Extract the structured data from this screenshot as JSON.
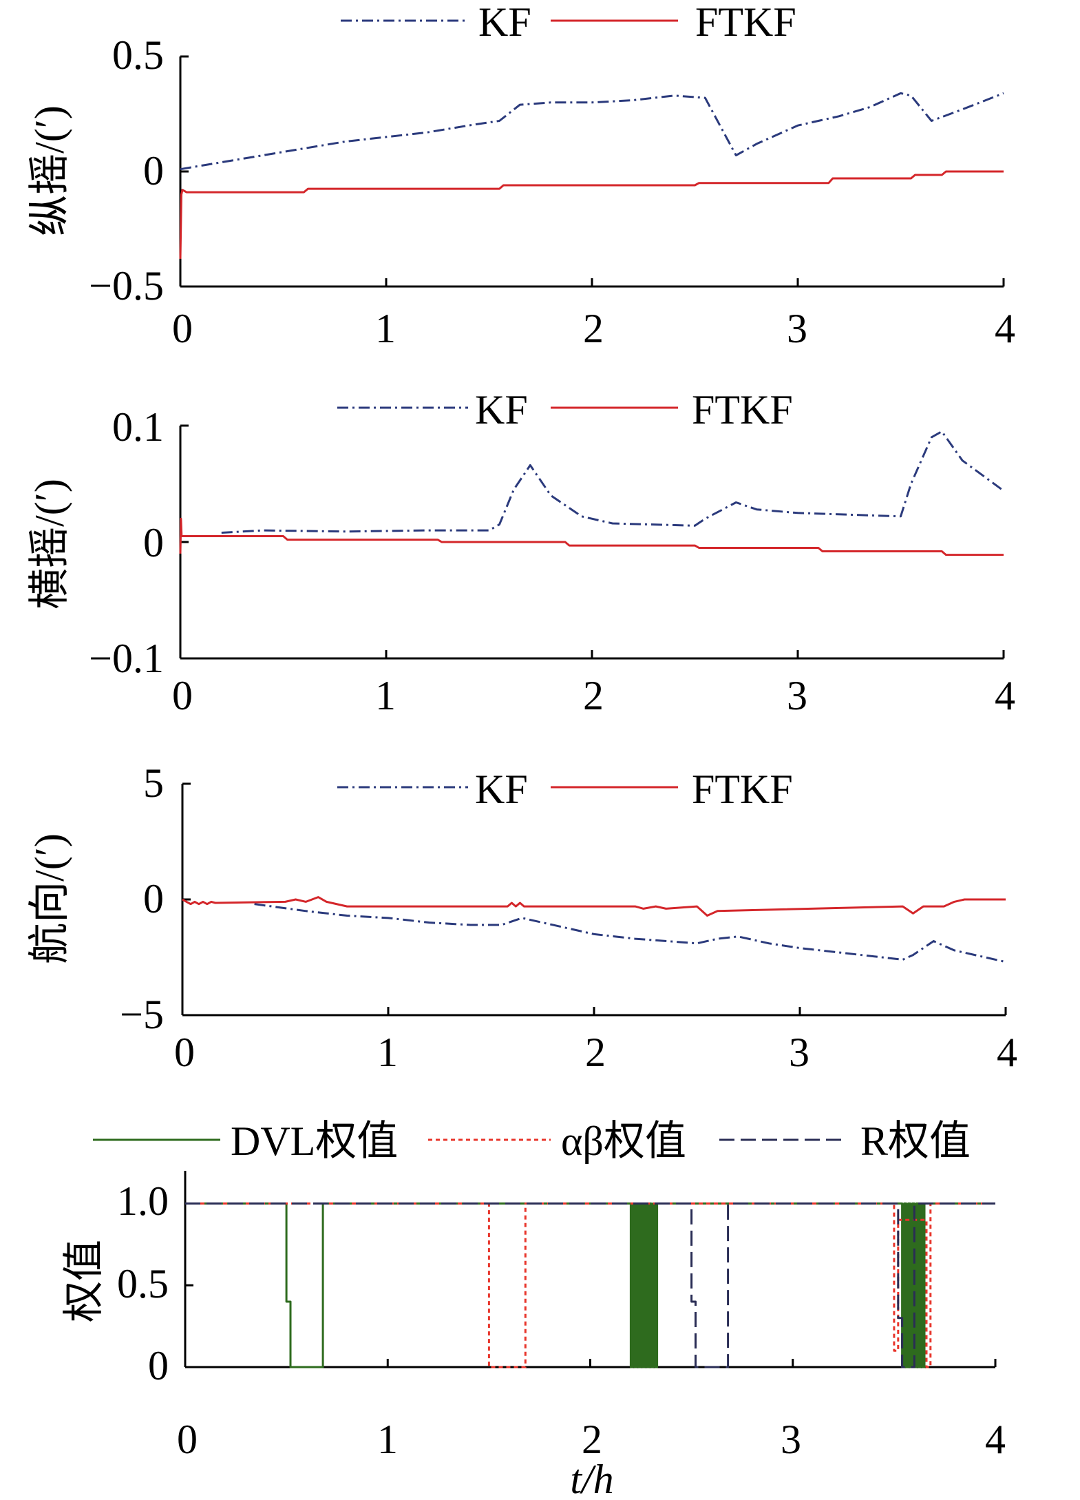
{
  "chart_data": [
    {
      "type": "line",
      "ylabel": "纵摇/(′)",
      "xlabel": "",
      "xlim": [
        0,
        4
      ],
      "ylim": [
        -0.5,
        0.5
      ],
      "xticks": [
        "0",
        "1",
        "2",
        "3",
        "4"
      ],
      "yticks": [
        "0.5",
        "0",
        "−0.5"
      ],
      "legend": [
        "KF",
        "FTKF"
      ],
      "series": [
        {
          "name": "KF",
          "color": "#2b3a7c",
          "style": "dashdot",
          "x": [
            0,
            0.2,
            0.4,
            0.6,
            0.8,
            1.0,
            1.2,
            1.4,
            1.55,
            1.65,
            1.8,
            2.0,
            2.2,
            2.4,
            2.55,
            2.7,
            2.8,
            3.0,
            3.2,
            3.35,
            3.5,
            3.55,
            3.65,
            3.8,
            4.0
          ],
          "y": [
            0.01,
            0.04,
            0.07,
            0.1,
            0.13,
            0.15,
            0.17,
            0.2,
            0.22,
            0.29,
            0.3,
            0.3,
            0.31,
            0.33,
            0.32,
            0.07,
            0.12,
            0.2,
            0.24,
            0.28,
            0.34,
            0.33,
            0.22,
            0.27,
            0.34
          ]
        },
        {
          "name": "FTKF",
          "color": "#d4262a",
          "style": "solid",
          "x": [
            0,
            0.005,
            0.01,
            0.03,
            0.6,
            0.62,
            1.55,
            1.57,
            2.5,
            2.52,
            3.15,
            3.17,
            3.55,
            3.57,
            3.7,
            3.72,
            4.0
          ],
          "y": [
            -0.38,
            -0.1,
            -0.08,
            -0.09,
            -0.09,
            -0.075,
            -0.075,
            -0.06,
            -0.06,
            -0.05,
            -0.05,
            -0.03,
            -0.03,
            -0.015,
            -0.015,
            0.0,
            0.0
          ]
        }
      ]
    },
    {
      "type": "line",
      "ylabel": "横摇/(′)",
      "xlabel": "",
      "xlim": [
        0,
        4
      ],
      "ylim": [
        -0.1,
        0.1
      ],
      "xticks": [
        "0",
        "1",
        "2",
        "3",
        "4"
      ],
      "yticks": [
        "0.1",
        "0",
        "−0.1"
      ],
      "legend": [
        "KF",
        "FTKF"
      ],
      "series": [
        {
          "name": "KF",
          "color": "#2b3a7c",
          "style": "dashdot",
          "x": [
            0.2,
            0.4,
            0.8,
            1.2,
            1.5,
            1.55,
            1.62,
            1.7,
            1.8,
            1.95,
            2.1,
            2.5,
            2.55,
            2.7,
            2.8,
            3.0,
            3.5,
            3.55,
            3.65,
            3.7,
            3.8,
            4.0
          ],
          "y": [
            0.008,
            0.01,
            0.009,
            0.01,
            0.01,
            0.015,
            0.045,
            0.066,
            0.04,
            0.022,
            0.016,
            0.014,
            0.02,
            0.034,
            0.028,
            0.025,
            0.022,
            0.05,
            0.09,
            0.095,
            0.07,
            0.044
          ]
        },
        {
          "name": "FTKF",
          "color": "#d4262a",
          "style": "solid",
          "x": [
            0,
            0.003,
            0.006,
            0.5,
            0.52,
            1.25,
            1.27,
            1.87,
            1.89,
            2.5,
            2.52,
            3.1,
            3.12,
            3.7,
            3.72,
            4.0
          ],
          "y": [
            -0.01,
            0.02,
            0.005,
            0.005,
            0.002,
            0.002,
            0.0,
            0.0,
            -0.003,
            -0.003,
            -0.005,
            -0.005,
            -0.008,
            -0.008,
            -0.011,
            -0.011
          ]
        }
      ]
    },
    {
      "type": "line",
      "ylabel": "航向/(′)",
      "xlabel": "",
      "xlim": [
        0,
        4
      ],
      "ylim": [
        -5,
        5
      ],
      "xticks": [
        "0",
        "1",
        "2",
        "3",
        "4"
      ],
      "yticks": [
        "5",
        "0",
        "−5"
      ],
      "legend": [
        "KF",
        "FTKF"
      ],
      "series": [
        {
          "name": "KF",
          "color": "#2b3a7c",
          "style": "dashdot",
          "x": [
            0.35,
            0.6,
            0.8,
            1.0,
            1.2,
            1.4,
            1.55,
            1.65,
            1.75,
            2.0,
            2.2,
            2.5,
            2.6,
            2.7,
            2.85,
            3.0,
            3.2,
            3.5,
            3.55,
            3.65,
            3.75,
            4.0
          ],
          "y": [
            -0.2,
            -0.5,
            -0.7,
            -0.8,
            -1.0,
            -1.1,
            -1.1,
            -0.8,
            -1.0,
            -1.5,
            -1.7,
            -1.9,
            -1.7,
            -1.6,
            -1.9,
            -2.1,
            -2.3,
            -2.6,
            -2.4,
            -1.8,
            -2.2,
            -2.7
          ]
        },
        {
          "name": "FTKF",
          "color": "#d4262a",
          "style": "solid",
          "x": [
            0,
            0.02,
            0.04,
            0.06,
            0.08,
            0.1,
            0.12,
            0.14,
            0.16,
            0.5,
            0.55,
            0.6,
            0.66,
            0.7,
            0.8,
            1.0,
            1.58,
            1.6,
            1.62,
            1.64,
            1.66,
            2.2,
            2.24,
            2.3,
            2.35,
            2.5,
            2.55,
            2.6,
            3.5,
            3.55,
            3.6,
            3.7,
            3.75,
            3.8,
            4.0
          ],
          "y": [
            0,
            -0.1,
            -0.2,
            -0.1,
            -0.2,
            -0.1,
            -0.2,
            -0.1,
            -0.15,
            -0.1,
            0.0,
            -0.1,
            0.1,
            -0.1,
            -0.3,
            -0.3,
            -0.3,
            -0.15,
            -0.3,
            -0.15,
            -0.3,
            -0.3,
            -0.4,
            -0.3,
            -0.4,
            -0.3,
            -0.7,
            -0.5,
            -0.3,
            -0.6,
            -0.3,
            -0.3,
            -0.1,
            0.0,
            0.0
          ]
        }
      ]
    },
    {
      "type": "line",
      "ylabel": "权值",
      "xlabel": "t/h",
      "xlim": [
        0,
        4
      ],
      "ylim": [
        0,
        1.2
      ],
      "xticks": [
        "0",
        "1",
        "2",
        "3",
        "4"
      ],
      "yticks": [
        "1.0",
        "0.5",
        "0"
      ],
      "legend": [
        "DVL权值",
        "αβ权值",
        "R权值"
      ],
      "series": [
        {
          "name": "DVL权值",
          "color": "#2e6b1e",
          "style": "solid",
          "x": [
            0,
            0.5,
            0.5,
            0.52,
            0.52,
            0.68,
            0.68,
            2.2,
            2.2,
            2.21,
            2.21,
            2.22,
            2.22,
            2.23,
            2.23,
            2.24,
            2.24,
            2.25,
            2.25,
            2.26,
            2.26,
            2.27,
            2.27,
            2.28,
            2.28,
            2.29,
            2.29,
            2.3,
            2.3,
            2.31,
            2.31,
            2.32,
            2.32,
            2.33,
            2.33,
            3.54,
            3.54,
            3.55,
            3.55,
            3.56,
            3.56,
            3.57,
            3.57,
            3.58,
            3.58,
            3.59,
            3.59,
            3.6,
            3.6,
            3.61,
            3.61,
            3.62,
            3.62,
            3.63,
            3.63,
            3.64,
            3.64,
            3.65,
            3.65,
            4.0
          ],
          "y": [
            1,
            1,
            0.4,
            0.4,
            0,
            0,
            1,
            1,
            0,
            0,
            1,
            1,
            0,
            0,
            1,
            1,
            0,
            0,
            1,
            1,
            0,
            0,
            1,
            1,
            0,
            0,
            1,
            1,
            0,
            0,
            1,
            1,
            0,
            0,
            1,
            1,
            0,
            0,
            1,
            1,
            0,
            0,
            1,
            1,
            0,
            0,
            1,
            1,
            0,
            0,
            1,
            1,
            0,
            0,
            1,
            1,
            0,
            0,
            1,
            1
          ]
        },
        {
          "name": "αβ权值",
          "color": "#e8352b",
          "style": "dotted",
          "x": [
            0,
            1.5,
            1.5,
            1.68,
            1.68,
            3.5,
            3.5,
            3.52,
            3.52,
            3.66,
            3.66,
            3.68,
            3.68,
            4.0
          ],
          "y": [
            1,
            1,
            0,
            0,
            1,
            1,
            0.1,
            0.1,
            0.9,
            0.9,
            0,
            0,
            1,
            1
          ]
        },
        {
          "name": "R权值",
          "color": "#2a2d55",
          "style": "dashed",
          "x": [
            0,
            2.5,
            2.5,
            2.52,
            2.52,
            2.68,
            2.68,
            3.52,
            3.52,
            3.54,
            3.54,
            3.6,
            3.6,
            3.62,
            3.62,
            4.0
          ],
          "y": [
            1,
            1,
            0.4,
            0.4,
            0,
            0,
            1,
            1,
            0.3,
            0.3,
            0,
            0,
            1,
            1,
            1,
            1
          ]
        }
      ]
    }
  ]
}
